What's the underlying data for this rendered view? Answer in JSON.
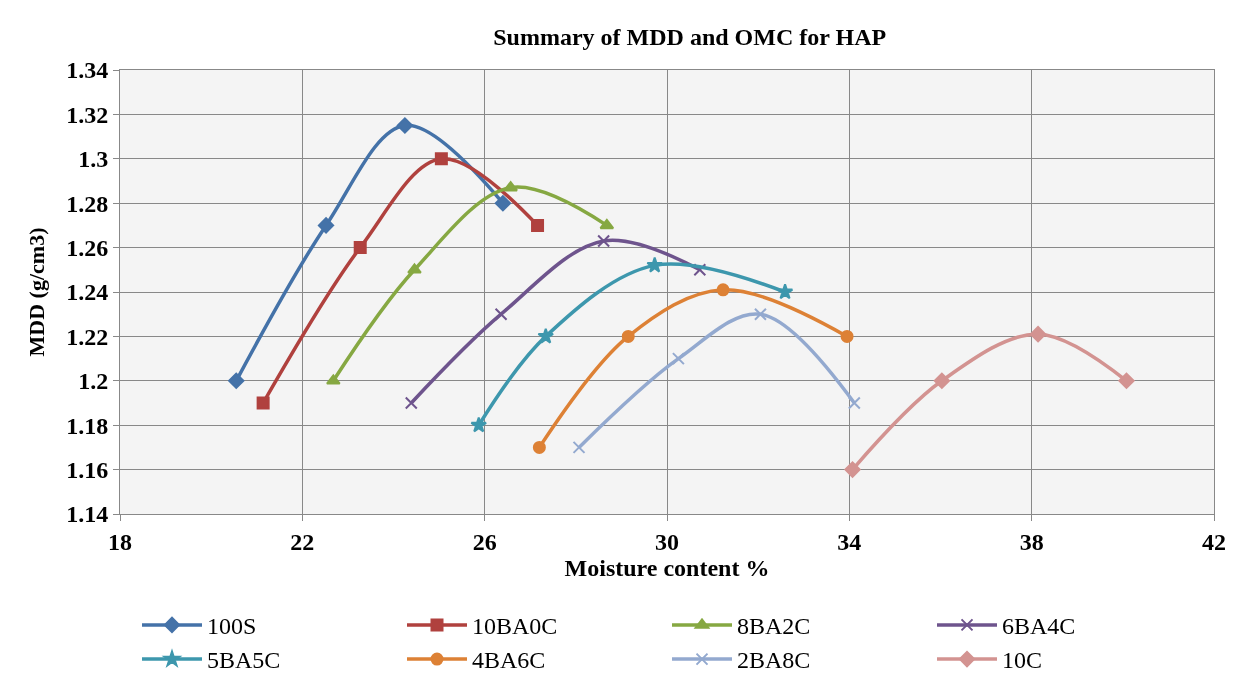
{
  "chart_data": {
    "type": "line",
    "title": "Summary of MDD and OMC for HAP",
    "xlabel": "Moisture content %",
    "ylabel": "MDD (g/cm3)",
    "xlim": [
      18,
      42
    ],
    "xticks": [
      18,
      22,
      26,
      30,
      34,
      38,
      42
    ],
    "ylim": [
      1.14,
      1.34
    ],
    "yticks": [
      1.14,
      1.16,
      1.18,
      1.2,
      1.22,
      1.24,
      1.26,
      1.28,
      1.3,
      1.32,
      1.34
    ],
    "grid": true,
    "legend": "bottom",
    "line_style": "solid",
    "series": [
      {
        "name": "100S",
        "color": "#4472a8",
        "marker": "diamond",
        "x": [
          20.55,
          22.52,
          24.25,
          26.4
        ],
        "values": [
          1.2,
          1.27,
          1.315,
          1.28
        ]
      },
      {
        "name": "10BA0C",
        "color": "#b0413e",
        "marker": "square",
        "x": [
          21.14,
          23.27,
          25.05,
          27.16
        ],
        "values": [
          1.19,
          1.26,
          1.3,
          1.27
        ]
      },
      {
        "name": "8BA2C",
        "color": "#86a842",
        "marker": "triangle",
        "x": [
          22.68,
          24.46,
          26.57,
          28.68
        ],
        "values": [
          1.2,
          1.25,
          1.287,
          1.27
        ]
      },
      {
        "name": "6BA4C",
        "color": "#6e548d",
        "marker": "cross",
        "x": [
          24.39,
          26.36,
          28.61,
          30.72
        ],
        "values": [
          1.19,
          1.23,
          1.263,
          1.25
        ]
      },
      {
        "name": "5BA5C",
        "color": "#3d97ad",
        "marker": "star",
        "x": [
          25.87,
          27.34,
          29.73,
          32.59
        ],
        "values": [
          1.18,
          1.22,
          1.252,
          1.24
        ]
      },
      {
        "name": "4BA6C",
        "color": "#dd8135",
        "marker": "circle",
        "x": [
          27.2,
          29.15,
          31.23,
          33.95
        ],
        "values": [
          1.17,
          1.22,
          1.241,
          1.22
        ]
      },
      {
        "name": "2BA8C",
        "color": "#93a9cf",
        "marker": "cross",
        "x": [
          28.07,
          30.25,
          32.05,
          34.11
        ],
        "values": [
          1.17,
          1.21,
          1.23,
          1.19
        ]
      },
      {
        "name": "10C",
        "color": "#d39391",
        "marker": "diamond",
        "x": [
          34.07,
          36.03,
          38.14,
          40.08
        ],
        "values": [
          1.16,
          1.2,
          1.221,
          1.2
        ]
      }
    ]
  }
}
